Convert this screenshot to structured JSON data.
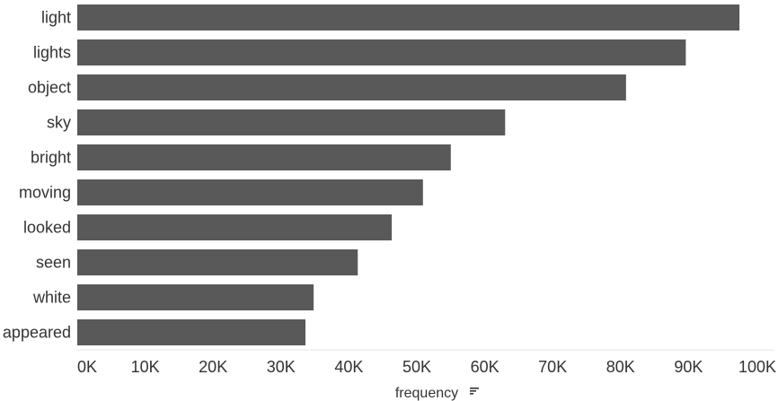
{
  "chart_data": {
    "type": "bar",
    "orientation": "horizontal",
    "categories": [
      "light",
      "lights",
      "object",
      "sky",
      "bright",
      "moving",
      "looked",
      "seen",
      "white",
      "appeared"
    ],
    "values": [
      97500,
      89600,
      80800,
      63000,
      55000,
      50900,
      46300,
      41300,
      34800,
      33600
    ],
    "xlabel": "frequency",
    "xlim": [
      0,
      100000
    ],
    "x_ticks": [
      0,
      10000,
      20000,
      30000,
      40000,
      50000,
      60000,
      70000,
      80000,
      90000,
      100000
    ],
    "x_tick_labels": [
      "0K",
      "10K",
      "20K",
      "30K",
      "40K",
      "50K",
      "60K",
      "70K",
      "80K",
      "90K",
      "100K"
    ],
    "grid": false,
    "legend": "none",
    "sort_indicator_icon": "sort-descending-icon",
    "colors": {
      "bar": "#595959",
      "text": "#333333",
      "axis": "#e6e6e6"
    }
  }
}
